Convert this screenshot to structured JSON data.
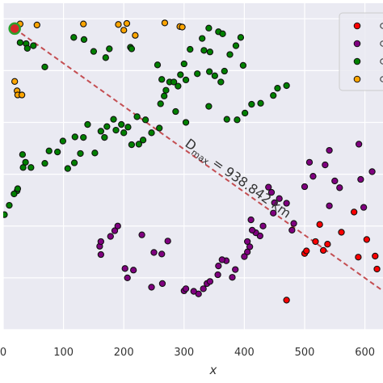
{
  "chart_data": {
    "type": "scatter",
    "title": "",
    "xlabel": "x",
    "ylabel": "",
    "xlim": [
      0,
      630
    ],
    "ylim": [
      0,
      630
    ],
    "grid": true,
    "background": "#eaeaf2",
    "x_ticks": [
      0,
      100,
      200,
      300,
      400,
      500,
      600
    ],
    "x_tick_labels": [
      "0",
      "100",
      "200",
      "300",
      "400",
      "500",
      "600"
    ],
    "legend": {
      "position": "top-right",
      "entries_visible_text": false
    },
    "series": [
      {
        "color": "#ff0000",
        "points": [
          [
            470,
            57
          ],
          [
            500,
            147
          ],
          [
            503,
            152
          ],
          [
            518,
            170
          ],
          [
            525,
            203
          ],
          [
            531,
            153
          ],
          [
            538,
            165
          ],
          [
            561,
            188
          ],
          [
            582,
            227
          ],
          [
            589,
            140
          ],
          [
            603,
            174
          ],
          [
            620,
            117
          ],
          [
            617,
            142
          ]
        ]
      },
      {
        "color": "#800080",
        "points": [
          [
            508,
            323
          ],
          [
            541,
            346
          ],
          [
            590,
            358
          ],
          [
            612,
            305
          ],
          [
            593,
            290
          ],
          [
            598,
            236
          ],
          [
            541,
            239
          ],
          [
            558,
            274
          ],
          [
            550,
            287
          ],
          [
            534,
            318
          ],
          [
            514,
            296
          ],
          [
            500,
            276
          ],
          [
            482,
            205
          ],
          [
            479,
            192
          ],
          [
            470,
            244
          ],
          [
            458,
            253
          ],
          [
            450,
            245
          ],
          [
            448,
            225
          ],
          [
            445,
            265
          ],
          [
            440,
            275
          ],
          [
            431,
            200
          ],
          [
            426,
            181
          ],
          [
            419,
            187
          ],
          [
            413,
            192
          ],
          [
            411,
            212
          ],
          [
            405,
            170
          ],
          [
            409,
            160
          ],
          [
            405,
            150
          ],
          [
            400,
            141
          ],
          [
            385,
            116
          ],
          [
            380,
            101
          ],
          [
            370,
            133
          ],
          [
            363,
            135
          ],
          [
            357,
            123
          ],
          [
            338,
            89
          ],
          [
            324,
            69
          ],
          [
            300,
            75
          ],
          [
            264,
            89
          ],
          [
            246,
            82
          ],
          [
            216,
            115
          ],
          [
            206,
            100
          ],
          [
            202,
            118
          ],
          [
            160,
            161
          ],
          [
            162,
            145
          ],
          [
            162,
            170
          ],
          [
            178,
            180
          ],
          [
            185,
            191
          ],
          [
            190,
            200
          ],
          [
            230,
            183
          ],
          [
            250,
            149
          ],
          [
            263,
            146
          ],
          [
            273,
            171
          ],
          [
            303,
            79
          ],
          [
            316,
            74
          ],
          [
            332,
            79
          ],
          [
            343,
            93
          ],
          [
            356,
            106
          ]
        ]
      },
      {
        "color": "#008000",
        "points": [
          [
            28,
            554
          ],
          [
            38,
            552
          ],
          [
            40,
            543
          ],
          [
            50,
            548
          ],
          [
            69,
            507
          ],
          [
            117,
            564
          ],
          [
            134,
            560
          ],
          [
            150,
            537
          ],
          [
            170,
            525
          ],
          [
            176,
            542
          ],
          [
            211,
            545
          ],
          [
            213,
            542
          ],
          [
            256,
            511
          ],
          [
            263,
            483
          ],
          [
            276,
            478
          ],
          [
            294,
            492
          ],
          [
            300,
            513
          ],
          [
            310,
            541
          ],
          [
            330,
            562
          ],
          [
            333,
            539
          ],
          [
            341,
            582
          ],
          [
            343,
            536
          ],
          [
            357,
            575
          ],
          [
            364,
            571
          ],
          [
            398,
            510
          ],
          [
            386,
            548
          ],
          [
            394,
            564
          ],
          [
            376,
            531
          ],
          [
            367,
            499
          ],
          [
            361,
            478
          ],
          [
            351,
            490
          ],
          [
            342,
            498
          ],
          [
            322,
            494
          ],
          [
            303,
            482
          ],
          [
            290,
            470
          ],
          [
            283,
            478
          ],
          [
            270,
            462
          ],
          [
            267,
            451
          ],
          [
            261,
            436
          ],
          [
            236,
            405
          ],
          [
            222,
            411
          ],
          [
            207,
            391
          ],
          [
            187,
            385
          ],
          [
            162,
            383
          ],
          [
            140,
            396
          ],
          [
            133,
            371
          ],
          [
            119,
            372
          ],
          [
            99,
            364
          ],
          [
            90,
            343
          ],
          [
            76,
            345
          ],
          [
            69,
            321
          ],
          [
            32,
            338
          ],
          [
            37,
            323
          ],
          [
            46,
            313
          ],
          [
            33,
            313
          ],
          [
            23,
            268
          ],
          [
            24,
            272
          ],
          [
            18,
            262
          ],
          [
            10,
            240
          ],
          [
            2,
            222
          ],
          [
            107,
            311
          ],
          [
            118,
            322
          ],
          [
            128,
            340
          ],
          [
            152,
            341
          ],
          [
            168,
            371
          ],
          [
            172,
            392
          ],
          [
            183,
            406
          ],
          [
            196,
            396
          ],
          [
            200,
            380
          ],
          [
            213,
            357
          ],
          [
            225,
            358
          ],
          [
            232,
            366
          ],
          [
            246,
            380
          ],
          [
            259,
            389
          ],
          [
            286,
            421
          ],
          [
            303,
            400
          ],
          [
            341,
            431
          ],
          [
            371,
            406
          ],
          [
            388,
            405
          ],
          [
            401,
            418
          ],
          [
            412,
            435
          ],
          [
            427,
            437
          ],
          [
            448,
            452
          ],
          [
            455,
            466
          ],
          [
            470,
            471
          ]
        ]
      },
      {
        "color": "#ffa500",
        "points": [
          [
            28,
            590
          ],
          [
            56,
            588
          ],
          [
            133,
            590
          ],
          [
            191,
            589
          ],
          [
            205,
            591
          ],
          [
            200,
            578
          ],
          [
            219,
            568
          ],
          [
            268,
            592
          ],
          [
            293,
            585
          ],
          [
            297,
            584
          ],
          [
            19,
            479
          ],
          [
            23,
            461
          ],
          [
            24,
            453
          ],
          [
            31,
            453
          ]
        ]
      }
    ],
    "highlight_point": {
      "x": 19,
      "y": 581,
      "color": "#d62728",
      "edge": "#2ca02c"
    },
    "annotation": {
      "label_base": "D",
      "label_sub": "max",
      "label_value": " = 938.842 km",
      "line_color": "#c44e52",
      "line_style": "dashed",
      "line_from": [
        19,
        581
      ],
      "line_to": [
        660,
        50
      ]
    }
  }
}
